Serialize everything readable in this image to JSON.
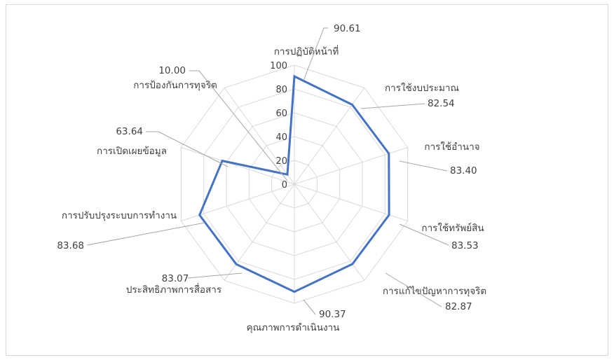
{
  "chart_data": {
    "type": "radar",
    "categories": [
      "การปฏิบัติหน้าที่",
      "การใช้งบประมาณ",
      "การใช้อำนาจ",
      "การใช้ทรัพย์สิน",
      "การแก้ไขปัญหาการทุจริต",
      "คุณภาพการดำเนินงาน",
      "ประสิทธิภาพการสื่อสาร",
      "การปรับปรุงระบบการทำงาน",
      "การเปิดเผยข้อมูล",
      "การป้องกันการทุจริต"
    ],
    "series": [
      {
        "values": [
          90.61,
          82.54,
          83.4,
          83.53,
          82.87,
          90.37,
          83.07,
          83.68,
          63.64,
          10.0
        ],
        "value_labels": [
          "90.61",
          "82.54",
          "83.40",
          "83.53",
          "82.87",
          "90.37",
          "83.07",
          "83.68",
          "63.64",
          "10.00"
        ],
        "color": "#4472c4"
      }
    ],
    "rlim": [
      0,
      100
    ],
    "ticks": [
      0,
      20,
      40,
      60,
      80,
      100
    ],
    "tick_labels": [
      "0",
      "20",
      "40",
      "60",
      "80",
      "100"
    ],
    "grid": true,
    "grid_color": "#d9d9d9",
    "leader_color": "#a6a6a6",
    "legend": "none"
  }
}
